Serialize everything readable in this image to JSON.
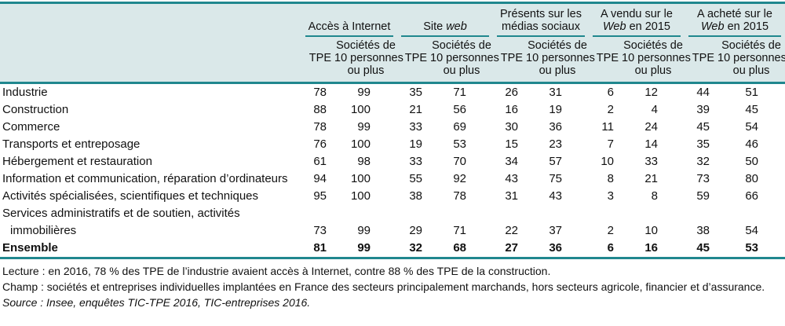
{
  "colors": {
    "teal": "#20878e",
    "header_bg": "#dae8e9"
  },
  "header": {
    "corner": "",
    "groups": [
      {
        "l1": {
          "pre": "Accès à Internet",
          "it": "",
          "post": ""
        },
        "l2": {
          "pre": "",
          "it": "",
          "post": ""
        }
      },
      {
        "l1": {
          "pre": "Site ",
          "it": "web",
          "post": ""
        },
        "l2": {
          "pre": "",
          "it": "",
          "post": ""
        }
      },
      {
        "l1": {
          "pre": "Présents sur les",
          "it": "",
          "post": ""
        },
        "l2": {
          "pre": "médias sociaux",
          "it": "",
          "post": ""
        }
      },
      {
        "l1": {
          "pre": "A vendu sur le",
          "it": "",
          "post": ""
        },
        "l2": {
          "pre": "",
          "it": "Web",
          "post": " en 2015"
        }
      },
      {
        "l1": {
          "pre": "A acheté sur le",
          "it": "",
          "post": ""
        },
        "l2": {
          "pre": "",
          "it": "Web",
          "post": " en 2015"
        }
      }
    ],
    "sub": {
      "tpe": "TPE",
      "soc": [
        "Sociétés de",
        "10 personnes",
        "ou plus"
      ]
    }
  },
  "table": {
    "rows": [
      {
        "label": "Industrie",
        "values": [
          78,
          99,
          35,
          71,
          26,
          31,
          6,
          12,
          44,
          51
        ]
      },
      {
        "label": "Construction",
        "values": [
          88,
          100,
          21,
          56,
          16,
          19,
          2,
          4,
          39,
          45
        ]
      },
      {
        "label": "Commerce",
        "values": [
          78,
          99,
          33,
          69,
          30,
          36,
          11,
          24,
          45,
          54
        ]
      },
      {
        "label": "Transports et entreposage",
        "values": [
          76,
          100,
          19,
          53,
          15,
          23,
          7,
          14,
          35,
          46
        ]
      },
      {
        "label": "Hébergement et restauration",
        "values": [
          61,
          98,
          33,
          70,
          34,
          57,
          10,
          33,
          32,
          50
        ]
      },
      {
        "label": "Information et communication, réparation d’ordinateurs",
        "values": [
          94,
          100,
          55,
          92,
          43,
          75,
          8,
          21,
          73,
          80
        ]
      },
      {
        "label": "Activités spécialisées, scientifiques et techniques",
        "values": [
          95,
          100,
          38,
          78,
          31,
          43,
          3,
          8,
          59,
          66
        ]
      },
      {
        "label": "Services administratifs et de soutien, activités",
        "label2": "immobilières",
        "values": [
          73,
          99,
          29,
          71,
          22,
          37,
          2,
          10,
          38,
          54
        ]
      },
      {
        "label": "Ensemble",
        "bold": true,
        "values": [
          81,
          99,
          32,
          68,
          27,
          36,
          6,
          16,
          45,
          53
        ]
      }
    ]
  },
  "notes": {
    "lecture": "Lecture : en 2016, 78 % des TPE de l’industrie avaient accès à Internet, contre 88 % des TPE de la construction.",
    "champ": "Champ : sociétés et entreprises individuelles implantées en France des secteurs principalement marchands, hors secteurs agricole, financier et d’assurance.",
    "source": "Source : Insee, enquêtes TIC-TPE 2016, TIC-entreprises 2016."
  }
}
